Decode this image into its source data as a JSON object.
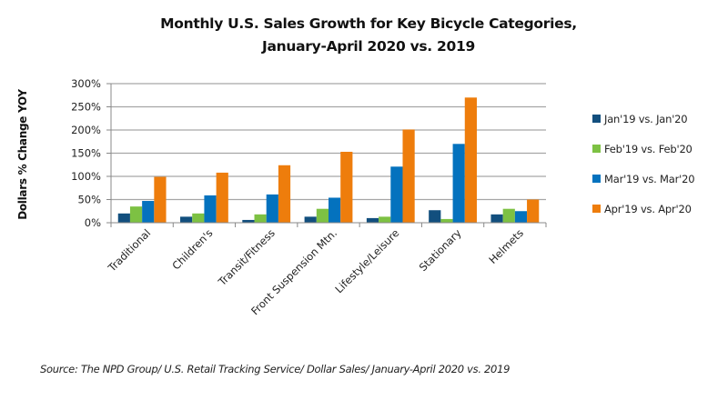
{
  "chart_data": {
    "type": "bar",
    "title": "Monthly U.S. Sales Growth for Key Bicycle Categories,",
    "subtitle": "January-April  2020 vs. 2019",
    "xlabel": "",
    "ylabel": "Dollars % Change YOY",
    "ylim": [
      0,
      300
    ],
    "yticks": [
      0,
      50,
      100,
      150,
      200,
      250,
      300
    ],
    "ytick_labels": [
      "0%",
      "50%",
      "100%",
      "150%",
      "200%",
      "250%",
      "300%"
    ],
    "grid": true,
    "legend_position": "right",
    "categories": [
      "Traditional",
      "Children's",
      "Transit/Fitness",
      "Front Suspension Mtn.",
      "Lifestyle/Leisure",
      "Stationary",
      "Helmets"
    ],
    "series": [
      {
        "name": "Jan'19 vs. Jan'20",
        "color": "#124F7E",
        "values": [
          20,
          13,
          6,
          13,
          10,
          27,
          18
        ]
      },
      {
        "name": "Feb'19 vs. Feb'20",
        "color": "#7DC143",
        "values": [
          35,
          20,
          18,
          30,
          13,
          8,
          30
        ]
      },
      {
        "name": "Mar'19 vs. Mar'20",
        "color": "#0472BE",
        "values": [
          47,
          59,
          61,
          54,
          121,
          170,
          25
        ]
      },
      {
        "name": "Apr'19 vs. Apr'20",
        "color": "#EE7D0C",
        "values": [
          99,
          108,
          124,
          153,
          201,
          270,
          50
        ]
      }
    ],
    "source": "Source:  The NPD Group/ U.S.  Retail Tracking Service/  Dollar Sales/ January-April 2020 vs. 2019"
  }
}
